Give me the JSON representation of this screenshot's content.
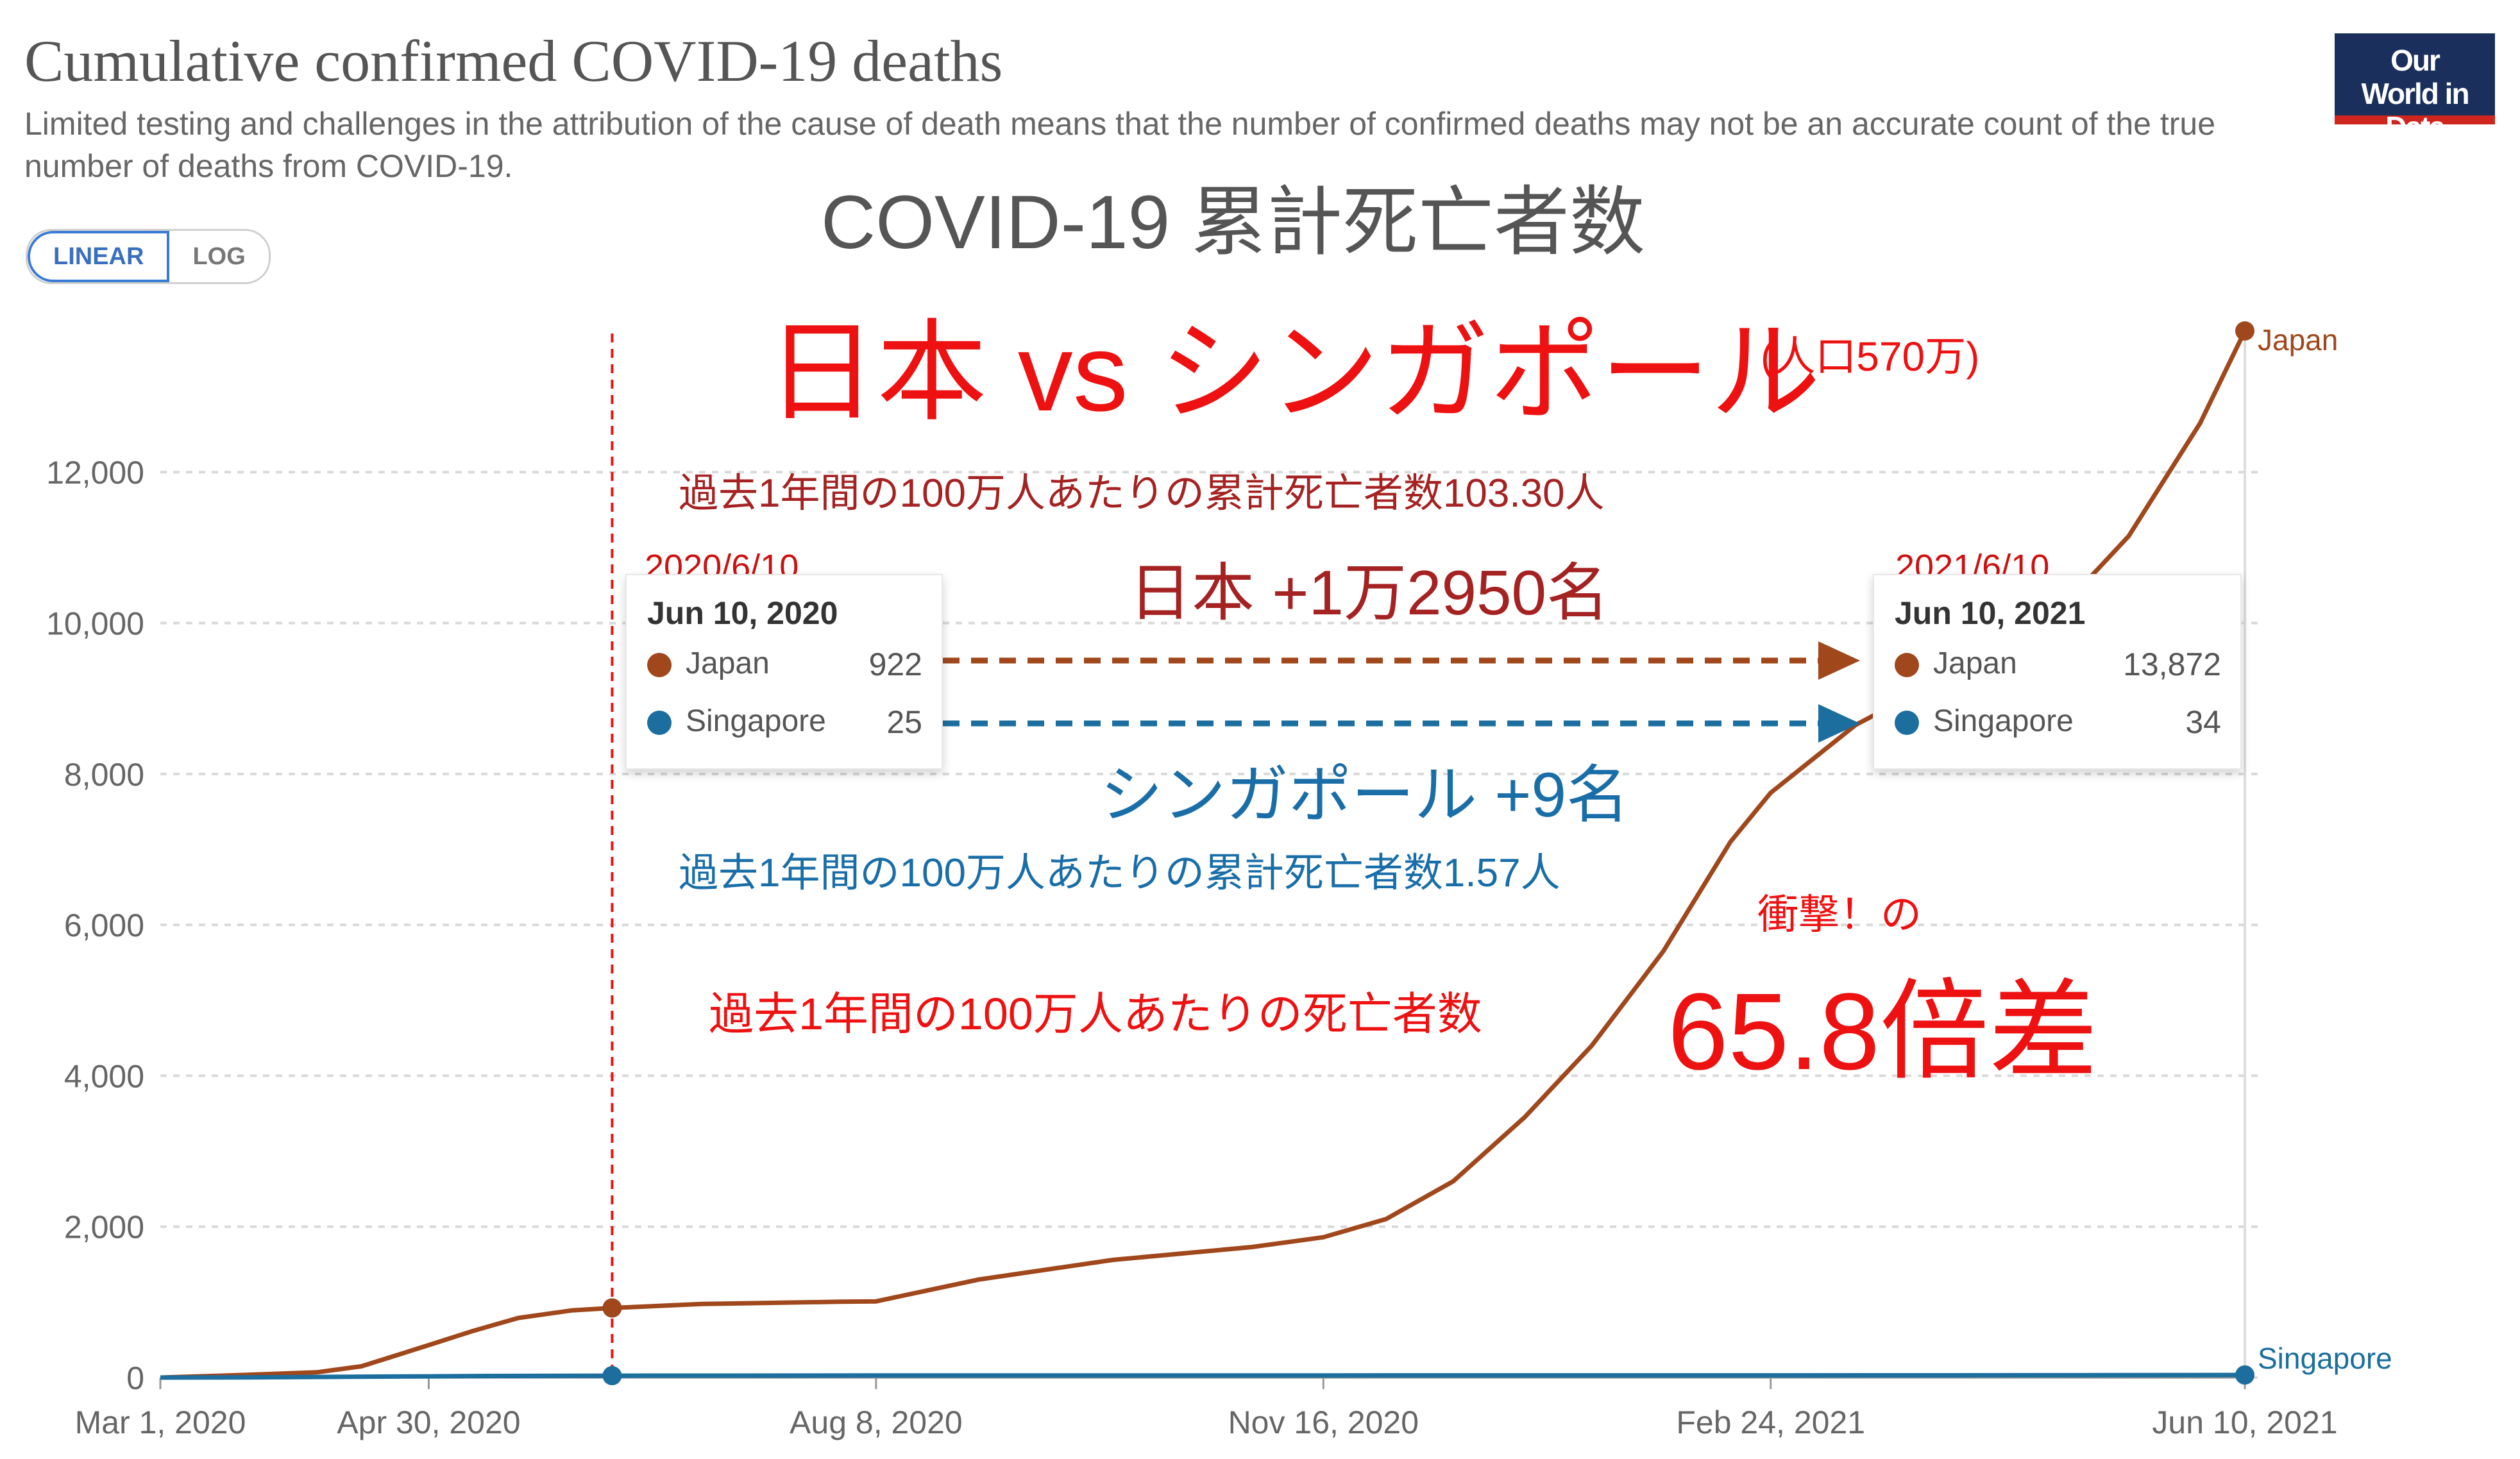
{
  "header": {
    "title": "Cumulative confirmed COVID-19 deaths",
    "subtitle": "Limited testing and challenges in the attribution of the cause of death means that the number of confirmed deaths may not be an accurate count of the true number of deaths from COVID-19.",
    "logo_text": "Our World in Data",
    "toggle": {
      "linear": "LINEAR",
      "log": "LOG",
      "selected": "LINEAR"
    }
  },
  "annotations": {
    "jp_heading": "COVID-19 累計死亡者数",
    "main_heading": "日本 vs シンガポール",
    "main_heading_note": "(人口570万)",
    "japan_rate": "過去1年間の100万人あたりの累計死亡者数103.30人",
    "japan_gain": "日本  +1万2950名",
    "singapore_gain": "シンガポール +9名",
    "singapore_rate": "過去1年間の100万人あたりの累計死亡者数1.57人",
    "shock": "衝撃！の",
    "ratio_label": "過去1年間の100万人あたりの死亡者数",
    "ratio_value": "65.8倍差"
  },
  "tooltips": {
    "left": {
      "jp_date": "2020/6/10",
      "date": "Jun 10, 2020",
      "rows": [
        {
          "country": "Japan",
          "value": "922"
        },
        {
          "country": "Singapore",
          "value": "25"
        }
      ]
    },
    "right": {
      "jp_date": "2021/6/10",
      "date": "Jun 10, 2021",
      "rows": [
        {
          "country": "Japan",
          "value": "13,872"
        },
        {
          "country": "Singapore",
          "value": "34"
        }
      ]
    }
  },
  "colors": {
    "japan": "#a0471b",
    "singapore": "#1b6e9e",
    "red": "#ee1111",
    "arrow_japan": "#a0471b",
    "arrow_singapore": "#1b6e9e"
  },
  "chart_data": {
    "type": "line",
    "title": "Cumulative confirmed COVID-19 deaths",
    "x_ticks": [
      "Mar 1, 2020",
      "Apr 30, 2020",
      "Aug 8, 2020",
      "Nov 16, 2020",
      "Feb 24, 2021",
      "Jun 10, 2021"
    ],
    "y_ticks": [
      "0",
      "2,000",
      "4,000",
      "6,000",
      "8,000",
      "10,000",
      "12,000"
    ],
    "ylim": [
      0,
      13872
    ],
    "xlim": [
      "2020-03-01",
      "2021-06-10"
    ],
    "grid": true,
    "marker_date": "2020-06-10",
    "series": [
      {
        "name": "Japan",
        "points": [
          [
            "2020-03-01",
            0
          ],
          [
            "2020-03-20",
            35
          ],
          [
            "2020-04-05",
            70
          ],
          [
            "2020-04-15",
            150
          ],
          [
            "2020-04-30",
            430
          ],
          [
            "2020-05-10",
            620
          ],
          [
            "2020-05-20",
            790
          ],
          [
            "2020-06-01",
            890
          ],
          [
            "2020-06-10",
            922
          ],
          [
            "2020-06-30",
            975
          ],
          [
            "2020-07-31",
            1005
          ],
          [
            "2020-08-08",
            1010
          ],
          [
            "2020-08-31",
            1300
          ],
          [
            "2020-09-30",
            1560
          ],
          [
            "2020-10-31",
            1730
          ],
          [
            "2020-11-16",
            1860
          ],
          [
            "2020-11-30",
            2100
          ],
          [
            "2020-12-15",
            2600
          ],
          [
            "2020-12-31",
            3450
          ],
          [
            "2021-01-15",
            4400
          ],
          [
            "2021-01-31",
            5650
          ],
          [
            "2021-02-15",
            7100
          ],
          [
            "2021-02-24",
            7750
          ],
          [
            "2021-03-15",
            8650
          ],
          [
            "2021-03-31",
            9150
          ],
          [
            "2021-04-15",
            9550
          ],
          [
            "2021-04-30",
            10200
          ],
          [
            "2021-05-15",
            11150
          ],
          [
            "2021-05-31",
            12650
          ],
          [
            "2021-06-10",
            13872
          ]
        ]
      },
      {
        "name": "Singapore",
        "points": [
          [
            "2020-03-01",
            0
          ],
          [
            "2020-03-20",
            2
          ],
          [
            "2020-04-10",
            9
          ],
          [
            "2020-04-30",
            16
          ],
          [
            "2020-05-15",
            21
          ],
          [
            "2020-06-10",
            25
          ],
          [
            "2020-08-08",
            27
          ],
          [
            "2020-11-16",
            28
          ],
          [
            "2021-02-24",
            29
          ],
          [
            "2021-04-30",
            31
          ],
          [
            "2021-06-10",
            34
          ]
        ]
      }
    ]
  }
}
